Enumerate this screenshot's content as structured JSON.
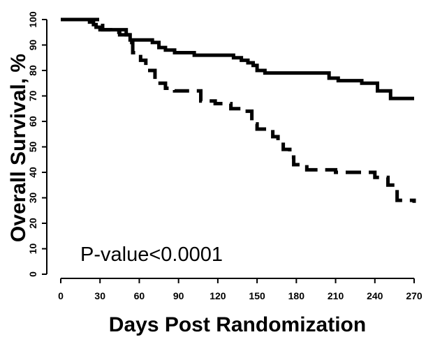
{
  "chart_data": {
    "type": "line",
    "title": "",
    "xlabel": "Days Post Randomization",
    "ylabel": "Overall Survival, %",
    "xlim": [
      0,
      270
    ],
    "ylim": [
      0,
      100
    ],
    "x_ticks": [
      0,
      30,
      60,
      90,
      120,
      150,
      180,
      210,
      240,
      270
    ],
    "y_ticks": [
      0,
      10,
      20,
      30,
      40,
      50,
      60,
      70,
      80,
      90,
      100
    ],
    "grid": false,
    "annotation": "P-value<0.0001",
    "series": [
      {
        "style": "solid",
        "color": "#000000",
        "x": [
          0,
          18,
          22,
          25,
          27,
          30,
          50,
          53,
          70,
          75,
          80,
          87,
          102,
          113,
          132,
          138,
          143,
          147,
          150,
          156,
          205,
          212,
          230,
          242,
          252,
          270
        ],
        "y": [
          100,
          100,
          99,
          98,
          97,
          96,
          94,
          92,
          91,
          89,
          88,
          87,
          86,
          86,
          85,
          84,
          83,
          82,
          80,
          79,
          77,
          76,
          75,
          72,
          69,
          69
        ]
      },
      {
        "style": "dashed",
        "color": "#000000",
        "x": [
          0,
          29,
          32,
          38,
          45,
          52,
          55,
          61,
          65,
          72,
          80,
          87,
          107,
          118,
          130,
          140,
          146,
          150,
          162,
          166,
          170,
          175,
          178,
          188,
          210,
          240,
          250,
          257,
          270
        ],
        "y": [
          100,
          100,
          96,
          95,
          94,
          91,
          87,
          84,
          80,
          75,
          73,
          72,
          68,
          67,
          65,
          64,
          59,
          57,
          54,
          52,
          49,
          46,
          43,
          41,
          40,
          38,
          35,
          29,
          28
        ]
      }
    ]
  }
}
